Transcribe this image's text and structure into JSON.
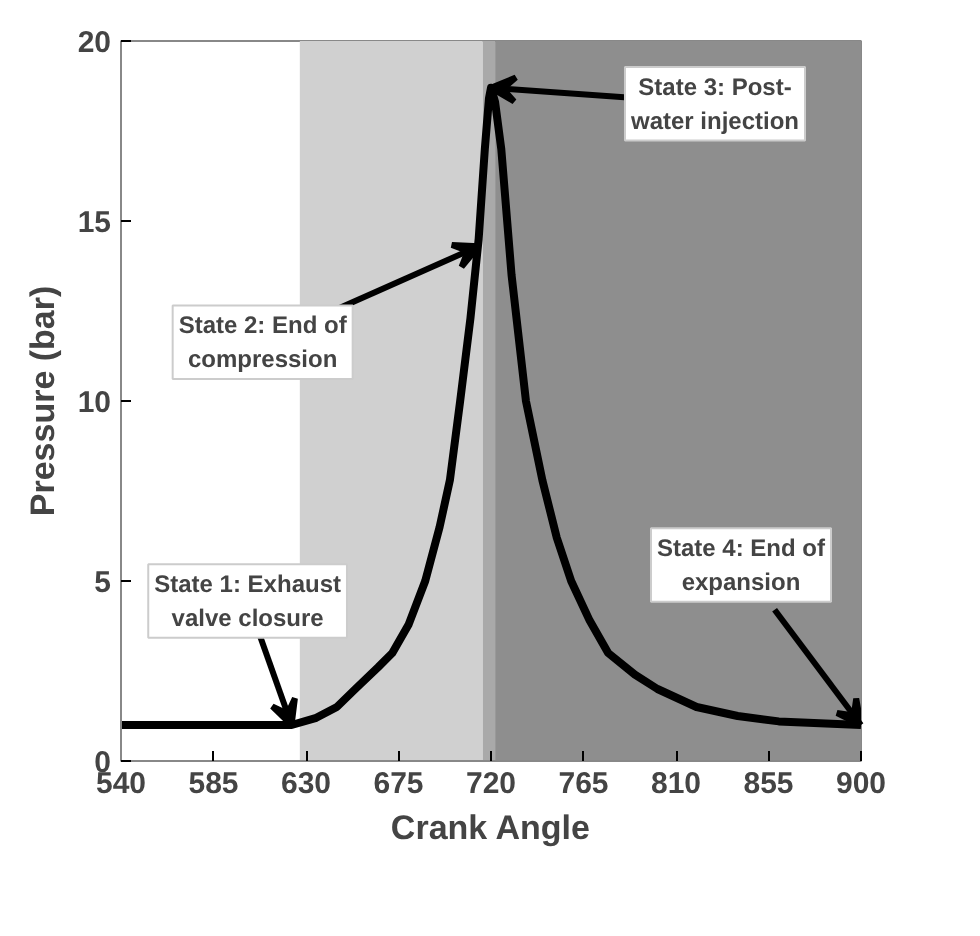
{
  "chart_data": {
    "type": "line",
    "xlabel": "Crank Angle",
    "ylabel": "Pressure (bar)",
    "x": [
      540,
      623,
      635,
      645,
      654,
      665,
      672,
      680,
      688,
      695,
      700,
      705,
      710,
      714,
      717,
      719,
      720,
      722,
      725,
      730,
      737,
      745,
      752,
      759,
      768,
      777,
      790,
      801,
      820,
      840,
      860,
      880,
      900
    ],
    "series": [
      {
        "color": "#000000",
        "values": [
          1.0,
          1.0,
          1.2,
          1.5,
          2.0,
          2.6,
          3.0,
          3.8,
          5.0,
          6.5,
          7.8,
          10.0,
          12.3,
          14.5,
          17.0,
          18.4,
          18.7,
          18.3,
          17.0,
          13.5,
          10.0,
          7.8,
          6.2,
          5.0,
          3.9,
          3.0,
          2.4,
          2.0,
          1.5,
          1.25,
          1.1,
          1.05,
          1.0
        ]
      }
    ],
    "xlim": [
      540,
      900
    ],
    "ylim": [
      0,
      20
    ],
    "xticks": [
      540,
      585,
      630,
      675,
      720,
      765,
      810,
      855,
      900
    ],
    "yticks": [
      0,
      5,
      10,
      15,
      20
    ],
    "bands": [
      {
        "axis": "x",
        "from": 627,
        "to": 716,
        "color": "#d0d0d0"
      },
      {
        "axis": "x",
        "from": 716,
        "to": 722,
        "color": "#a9a9a9"
      },
      {
        "axis": "x",
        "from": 722,
        "to": 900,
        "color": "#8e8e8e"
      }
    ],
    "annotations": [
      {
        "text": "State 1: Exhaust\nvalve closure",
        "x": 623,
        "y": 1.0
      },
      {
        "text": "State 2: End of\ncompression",
        "x": 714,
        "y": 14.3
      },
      {
        "text": "State 3: Post-\nwater injection",
        "x": 720,
        "y": 18.7
      },
      {
        "text": "State 4: End of\nexpansion",
        "x": 900,
        "y": 1.0
      }
    ],
    "grid": false,
    "marker": "none",
    "line_style": "solid"
  }
}
